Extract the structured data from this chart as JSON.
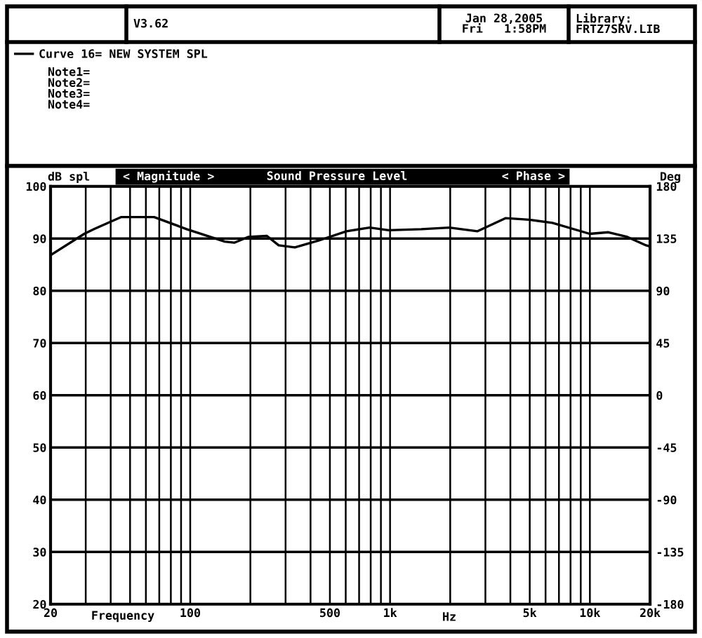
{
  "chart_data": {
    "type": "line",
    "title": "Sound Pressure Level",
    "ylabel": "dB spl",
    "y2label": "Deg",
    "xlabel": "Frequency",
    "log": "x",
    "annotations": [
      "V3.62",
      "Jan 28,2005\nFri   1:58PM",
      "Library:\nFRTZ7SRV.LIB",
      "Note1=\nNote2=\nNote3=\nNote4=",
      "< Magnitude >",
      "< Phase >",
      "Hz"
    ],
    "xlim": [
      20,
      20000
    ],
    "ylim": [
      20,
      100
    ],
    "y2lim": [
      -180,
      180
    ],
    "xticks": [
      20,
      {
        "value": 30,
        "label": null
      },
      {
        "value": 40,
        "label": null
      },
      {
        "value": 50,
        "label": null
      },
      {
        "value": 60,
        "label": null
      },
      {
        "value": 70,
        "label": null
      },
      {
        "value": 80,
        "label": null
      },
      {
        "value": 90,
        "label": null
      },
      100,
      {
        "value": 200,
        "label": null
      },
      {
        "value": 300,
        "label": null
      },
      {
        "value": 400,
        "label": null
      },
      500,
      {
        "value": 600,
        "label": null
      },
      {
        "value": 700,
        "label": null
      },
      {
        "value": 800,
        "label": null
      },
      {
        "value": 900,
        "label": null
      },
      {
        "value": 1000,
        "label": "1k"
      },
      {
        "value": 2000,
        "label": null
      },
      {
        "value": 3000,
        "label": null
      },
      {
        "value": 4000,
        "label": null
      },
      {
        "value": 5000,
        "label": "5k"
      },
      {
        "value": 6000,
        "label": null
      },
      {
        "value": 7000,
        "label": null
      },
      {
        "value": 8000,
        "label": null
      },
      {
        "value": 9000,
        "label": null
      },
      {
        "value": 10000,
        "label": "10k"
      },
      {
        "value": 20000,
        "label": "20k"
      }
    ],
    "yticks": [
      20,
      30,
      40,
      50,
      60,
      70,
      80,
      90,
      100
    ],
    "y2ticks": [
      -180,
      -135,
      -90,
      -45,
      0,
      45,
      90,
      135,
      180
    ],
    "grid": true,
    "legend": "top left",
    "marker": "none",
    "line_style": "solid",
    "series": [
      {
        "name": "Curve 16= NEW SYSTEM SPL",
        "color": "#000000",
        "x": [
          20,
          29.5,
          33,
          45,
          66,
          96,
          149,
          166,
          195,
          242,
          277,
          334,
          438,
          605,
          791,
          984,
          1433,
          1980,
          2740,
          3780,
          4960,
          6490,
          9980,
          12380,
          15400,
          19100,
          20000
        ],
        "values": [
          86.8,
          90.9,
          91.8,
          94.1,
          94.1,
          91.8,
          89.4,
          89.2,
          90.3,
          90.5,
          88.7,
          88.3,
          89.6,
          91.4,
          92.1,
          91.6,
          91.8,
          92.1,
          91.4,
          93.9,
          93.6,
          93.0,
          90.9,
          91.2,
          90.3,
          88.7,
          88.5
        ]
      }
    ]
  }
}
